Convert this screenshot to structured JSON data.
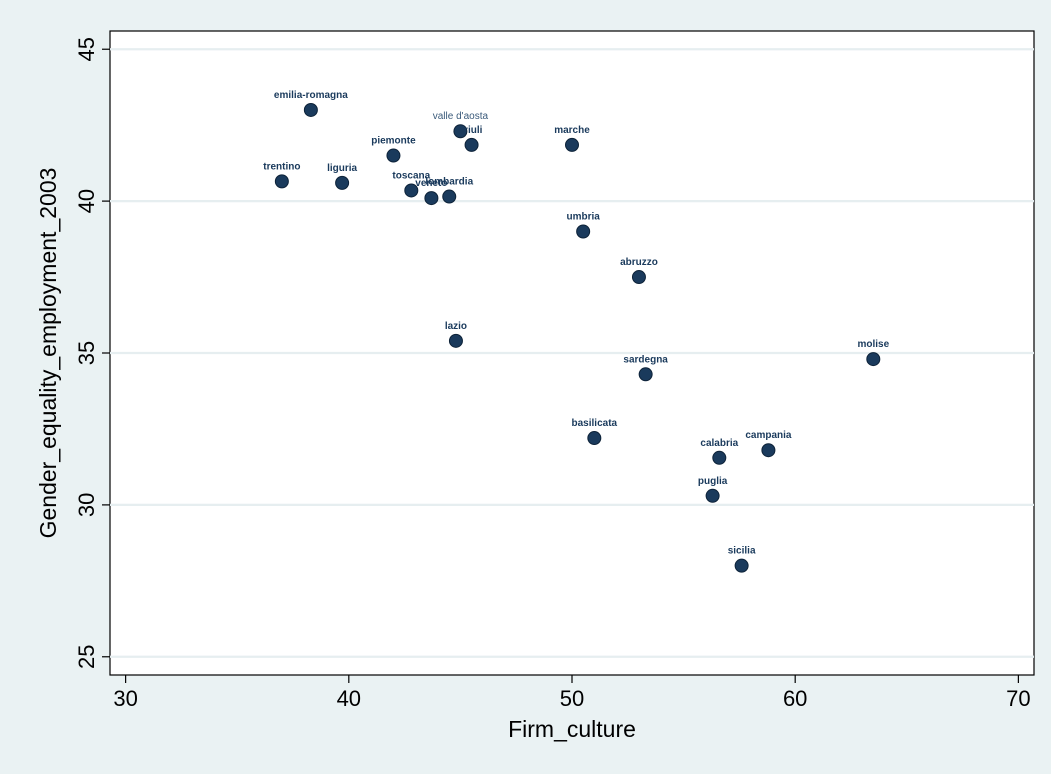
{
  "chart_data": {
    "type": "scatter",
    "title": "",
    "xlabel": "Firm_culture",
    "ylabel": "Gender_equality_employment_2003",
    "xlim": [
      29.3,
      70.7
    ],
    "ylim": [
      24.4,
      45.6
    ],
    "xticks": [
      30,
      40,
      50,
      60,
      70
    ],
    "yticks": [
      25,
      30,
      35,
      40,
      45
    ],
    "grid": "horizontal",
    "marker_color": "#1a3a5c",
    "points": [
      {
        "label": "emilia-romagna",
        "x": 38.3,
        "y": 43.0
      },
      {
        "label": "valle d'aosta",
        "x": 45.0,
        "y": 42.3
      },
      {
        "label": "friuli",
        "x": 45.5,
        "y": 41.85
      },
      {
        "label": "marche",
        "x": 50.0,
        "y": 41.85
      },
      {
        "label": "piemonte",
        "x": 42.0,
        "y": 41.5
      },
      {
        "label": "trentino",
        "x": 37.0,
        "y": 40.65
      },
      {
        "label": "liguria",
        "x": 39.7,
        "y": 40.6
      },
      {
        "label": "toscana",
        "x": 42.8,
        "y": 40.35
      },
      {
        "label": "veneto",
        "x": 43.7,
        "y": 40.1
      },
      {
        "label": "lombardia",
        "x": 44.5,
        "y": 40.15
      },
      {
        "label": "umbria",
        "x": 50.5,
        "y": 39.0
      },
      {
        "label": "abruzzo",
        "x": 53.0,
        "y": 37.5
      },
      {
        "label": "lazio",
        "x": 44.8,
        "y": 35.4
      },
      {
        "label": "molise",
        "x": 63.5,
        "y": 34.8
      },
      {
        "label": "sardegna",
        "x": 53.3,
        "y": 34.3
      },
      {
        "label": "basilicata",
        "x": 51.0,
        "y": 32.2
      },
      {
        "label": "campania",
        "x": 58.8,
        "y": 31.8
      },
      {
        "label": "calabria",
        "x": 56.6,
        "y": 31.55
      },
      {
        "label": "puglia",
        "x": 56.3,
        "y": 30.3
      },
      {
        "label": "sicilia",
        "x": 57.6,
        "y": 28.0
      }
    ]
  }
}
